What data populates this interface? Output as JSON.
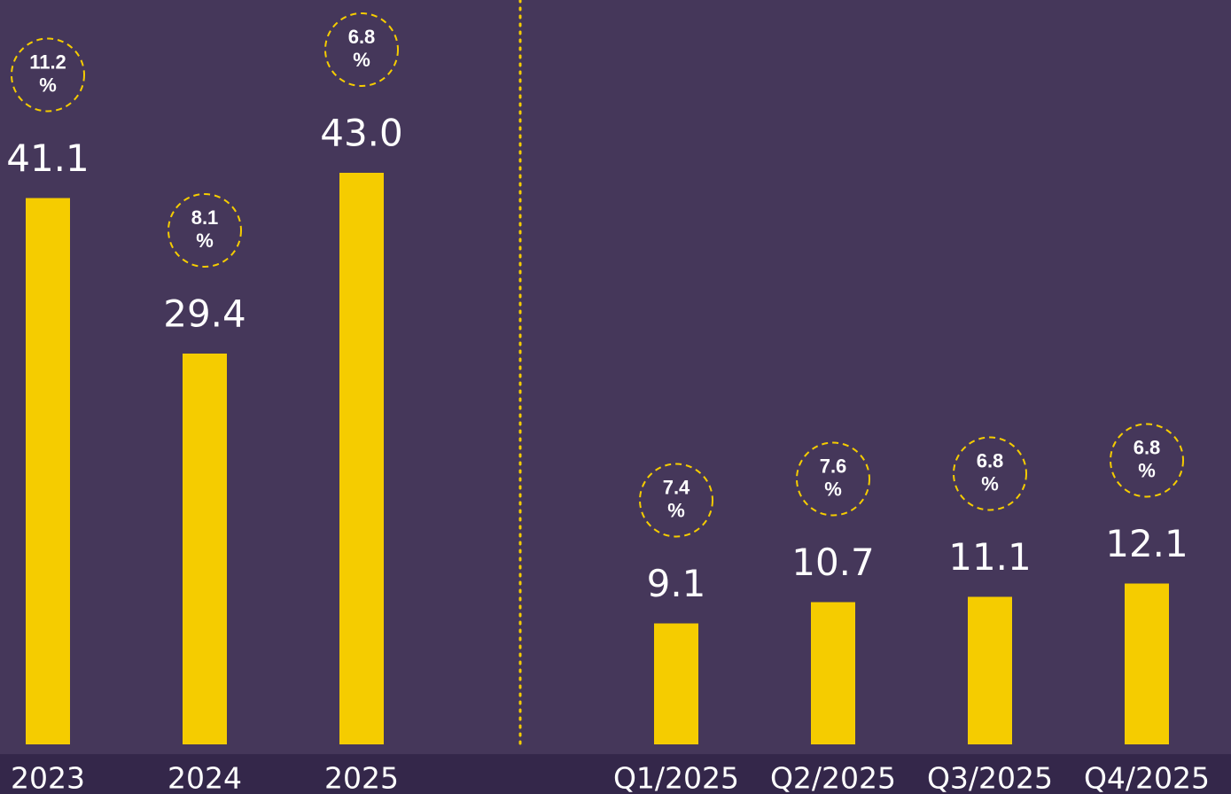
{
  "chart_data": [
    {
      "type": "bar",
      "categories": [
        "2023",
        "2024",
        "2025"
      ],
      "values": [
        41.1,
        29.4,
        43.0
      ],
      "value_labels": [
        "41.1",
        "29.4",
        "43.0"
      ],
      "growth_labels": [
        "11.2 %",
        "8.1 %",
        "6.8 %"
      ],
      "color": "#f5cc00",
      "ylim": [
        0,
        56
      ]
    },
    {
      "type": "bar",
      "categories": [
        "Q1/2025",
        "Q2/2025",
        "Q3/2025",
        "Q4/2025"
      ],
      "values": [
        9.1,
        10.7,
        11.1,
        12.1
      ],
      "value_labels": [
        "9.1",
        "10.7",
        "11.1",
        "12.1"
      ],
      "growth_labels": [
        "7.4 %",
        "7.6 %",
        "6.8 %",
        "6.8 %"
      ],
      "color": "#f5cc00",
      "ylim": [
        0,
        56
      ]
    }
  ]
}
